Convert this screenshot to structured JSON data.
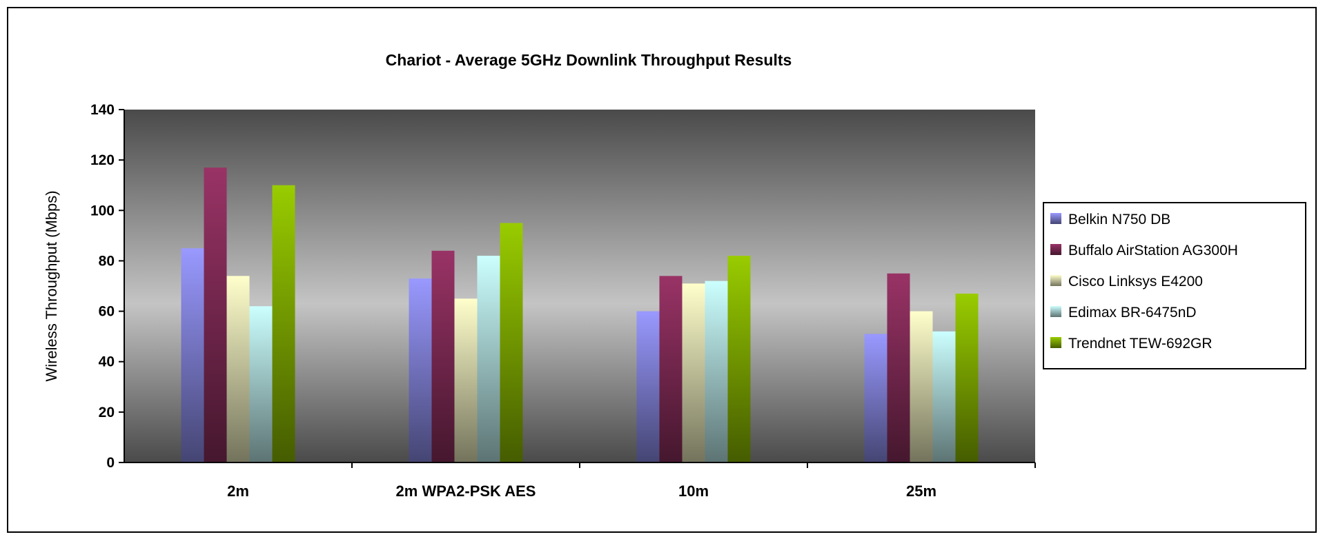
{
  "chart_data": {
    "type": "bar",
    "title": "Chariot - Average 5GHz Downlink Throughput Results",
    "xlabel": "",
    "ylabel": "Wireless Throughput (Mbps)",
    "ylim": [
      0,
      140
    ],
    "yticks": [
      0,
      20,
      40,
      60,
      80,
      100,
      120,
      140
    ],
    "categories": [
      "2m",
      "2m WPA2-PSK AES",
      "10m",
      "25m"
    ],
    "series": [
      {
        "name": "Belkin N750 DB",
        "color": "#9999ff",
        "values": [
          85,
          73,
          60,
          51
        ]
      },
      {
        "name": "Buffalo AirStation AG300H",
        "color": "#993366",
        "values": [
          117,
          84,
          74,
          75
        ]
      },
      {
        "name": "Cisco Linksys E4200",
        "color": "#ffffcc",
        "values": [
          74,
          65,
          71,
          60
        ]
      },
      {
        "name": "Edimax BR-6475nD",
        "color": "#ccffff",
        "values": [
          62,
          82,
          72,
          52
        ]
      },
      {
        "name": "Trendnet TEW-692GR",
        "color": "#99cc00",
        "values": [
          110,
          95,
          82,
          67
        ]
      }
    ],
    "legend": "right",
    "grid": false
  }
}
